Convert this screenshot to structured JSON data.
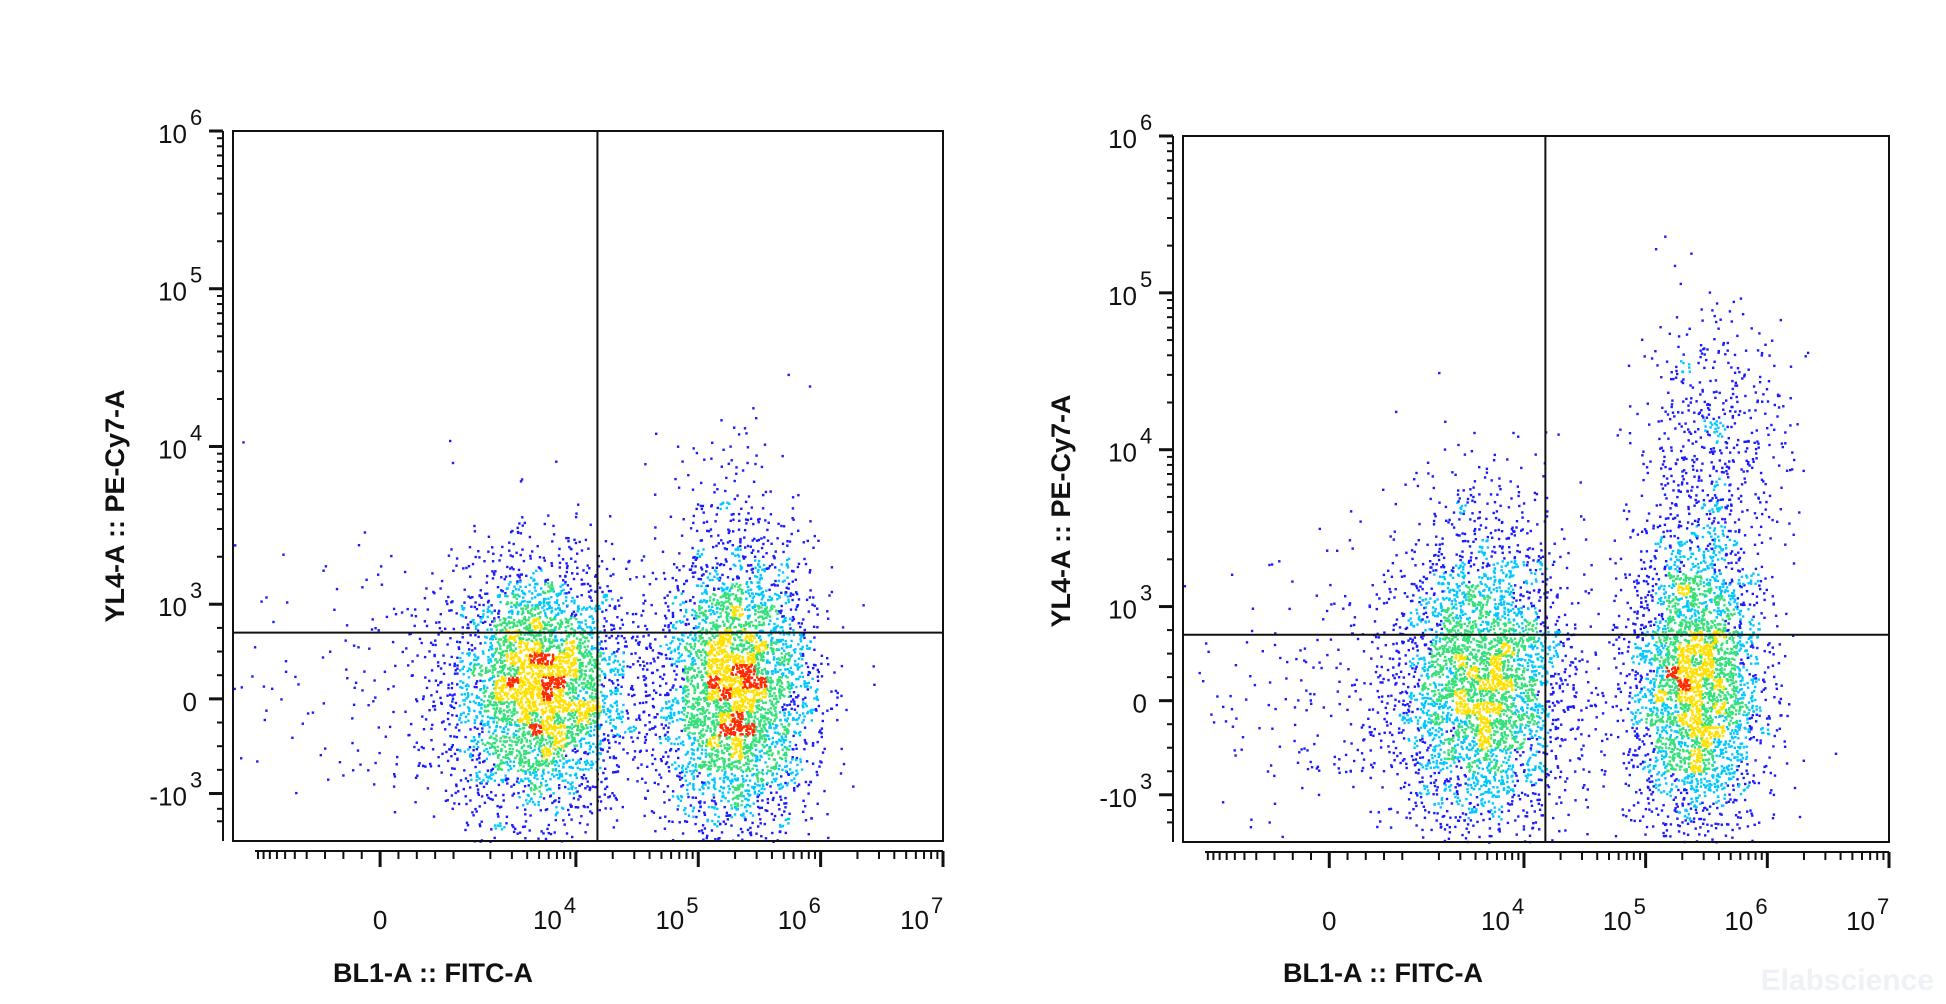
{
  "watermark": "Elabscience",
  "colors": {
    "frame": "#111111",
    "low": "#1a1aff",
    "mid": "#00c8ff",
    "high": "#35e07a",
    "peak": "#ffe000",
    "max": "#ff2a00"
  },
  "chart_data": [
    {
      "type": "scatter",
      "xlabel": "BL1-A :: FITC-A",
      "ylabel": "YL4-A :: PE-Cy7-A",
      "x_scale": "biexponential",
      "y_scale": "biexponential",
      "x_ticks": [
        {
          "base": "0",
          "exp": "",
          "value": 0
        },
        {
          "base": "10",
          "exp": "4",
          "value": 10000
        },
        {
          "base": "10",
          "exp": "5",
          "value": 100000
        },
        {
          "base": "10",
          "exp": "6",
          "value": 1000000
        },
        {
          "base": "10",
          "exp": "7",
          "value": 10000000
        }
      ],
      "y_ticks": [
        {
          "base": "-10",
          "exp": "3",
          "value": -1000
        },
        {
          "base": "0",
          "exp": "",
          "value": 0
        },
        {
          "base": "10",
          "exp": "3",
          "value": 1000
        },
        {
          "base": "10",
          "exp": "4",
          "value": 10000
        },
        {
          "base": "10",
          "exp": "5",
          "value": 100000
        },
        {
          "base": "10",
          "exp": "6",
          "value": 1000000
        }
      ],
      "quadrant_gate": {
        "x": 15000,
        "y": 700
      },
      "populations": [
        {
          "center_x": 5000,
          "center_y": 100,
          "spread_x": 0.8,
          "spread_y": 0.9,
          "count": 3600
        },
        {
          "center_x": 200000,
          "center_y": 100,
          "spread_x": 0.7,
          "spread_y": 1.0,
          "count": 3600
        },
        {
          "center_x": 200000,
          "center_y": 4000,
          "spread_x": 0.6,
          "spread_y": 0.7,
          "count": 110
        },
        {
          "center_x": 500,
          "center_y": 50,
          "spread_x": 1.6,
          "spread_y": 1.0,
          "count": 260
        }
      ]
    },
    {
      "type": "scatter",
      "xlabel": "BL1-A :: FITC-A",
      "ylabel": "YL4-A :: PE-Cy7-A",
      "x_scale": "biexponential",
      "y_scale": "biexponential",
      "x_ticks": [
        {
          "base": "0",
          "exp": "",
          "value": 0
        },
        {
          "base": "10",
          "exp": "4",
          "value": 10000
        },
        {
          "base": "10",
          "exp": "5",
          "value": 100000
        },
        {
          "base": "10",
          "exp": "6",
          "value": 1000000
        },
        {
          "base": "10",
          "exp": "7",
          "value": 10000000
        }
      ],
      "y_ticks": [
        {
          "base": "-10",
          "exp": "3",
          "value": -1000
        },
        {
          "base": "0",
          "exp": "",
          "value": 0
        },
        {
          "base": "10",
          "exp": "3",
          "value": 1000
        },
        {
          "base": "10",
          "exp": "4",
          "value": 10000
        },
        {
          "base": "10",
          "exp": "5",
          "value": 100000
        },
        {
          "base": "10",
          "exp": "6",
          "value": 1000000
        }
      ],
      "quadrant_gate": {
        "x": 15000,
        "y": 700
      },
      "populations": [
        {
          "center_x": 4500,
          "center_y": 150,
          "spread_x": 0.8,
          "spread_y": 1.0,
          "count": 3300
        },
        {
          "center_x": 250000,
          "center_y": 200,
          "spread_x": 0.6,
          "spread_y": 1.1,
          "count": 3300
        },
        {
          "center_x": 350000,
          "center_y": 10000,
          "spread_x": 0.7,
          "spread_y": 1.0,
          "count": 550
        },
        {
          "center_x": 5000,
          "center_y": 3000,
          "spread_x": 0.8,
          "spread_y": 0.8,
          "count": 180
        },
        {
          "center_x": 500,
          "center_y": 50,
          "spread_x": 1.6,
          "spread_y": 1.0,
          "count": 300
        }
      ]
    }
  ]
}
